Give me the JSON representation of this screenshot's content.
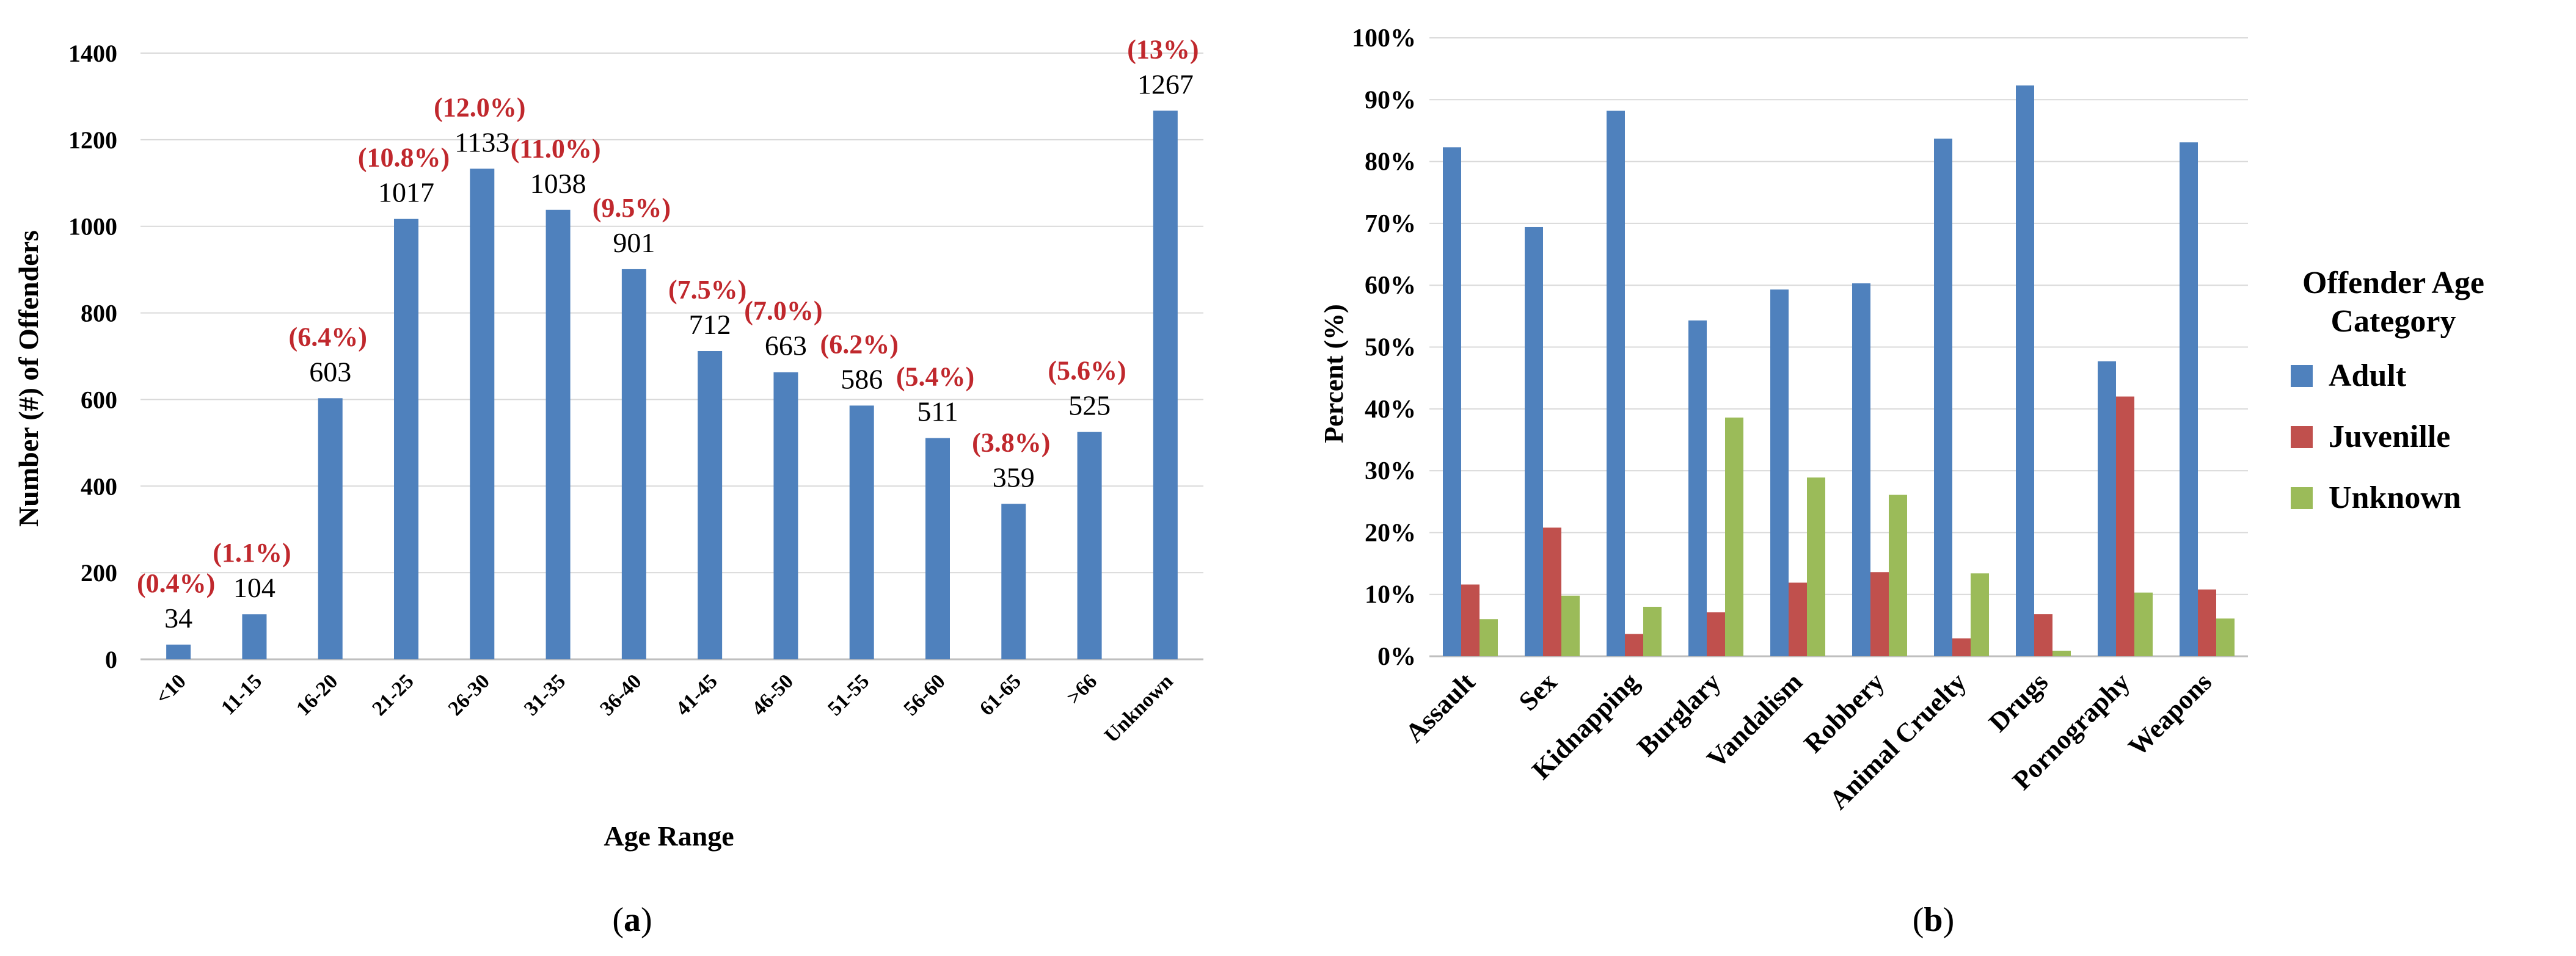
{
  "colors": {
    "adult": "#4F81BD",
    "juvenile": "#C0504D",
    "unknown": "#9BBB59",
    "percent_label": "#C0282D",
    "grid": "#D9D9D9",
    "axis": "#BFBFBF",
    "text": "#000000"
  },
  "chart_data": [
    {
      "type": "bar",
      "panel_label": "(a)",
      "panel_letter": "a",
      "xlabel": "Age Range",
      "ylabel": "Number (#) of Offenders",
      "ylim": [
        0,
        1400
      ],
      "yticks": [
        "0",
        "200",
        "400",
        "600",
        "800",
        "1000",
        "1200",
        "1400"
      ],
      "ytick_values": [
        0,
        200,
        400,
        600,
        800,
        1000,
        1200,
        1400
      ],
      "categories": [
        "<10",
        "11-15",
        "16-20",
        "21-25",
        "26-30",
        "31-35",
        "36-40",
        "41-45",
        "46-50",
        "51-55",
        "56-60",
        "61-65",
        ">66",
        "Unknown"
      ],
      "values": [
        34,
        104,
        603,
        1017,
        1133,
        1038,
        901,
        712,
        663,
        586,
        511,
        359,
        525,
        1267
      ],
      "value_labels": [
        "34",
        "104",
        "603",
        "1017",
        "1133",
        "1038",
        "901",
        "712",
        "663",
        "586",
        "511",
        "359",
        "525",
        "1267"
      ],
      "percent_labels": [
        "(0.4%)",
        "(1.1%)",
        "(6.4%)",
        "(10.8%)",
        "(12.0%)",
        "(11.0%)",
        "(9.5%)",
        "(7.5%)",
        "(7.0%)",
        "(6.2%)",
        "(5.4%)",
        "(3.8%)",
        "(5.6%)",
        "(13%)"
      ],
      "grid": true
    },
    {
      "type": "bar",
      "panel_label": "(b)",
      "panel_letter": "b",
      "xlabel": "",
      "ylabel": "Percent (%)",
      "ylim": [
        0,
        100
      ],
      "yticks": [
        "0%",
        "10%",
        "20%",
        "30%",
        "40%",
        "50%",
        "60%",
        "70%",
        "80%",
        "90%",
        "100%"
      ],
      "ytick_values": [
        0,
        10,
        20,
        30,
        40,
        50,
        60,
        70,
        80,
        90,
        100
      ],
      "categories": [
        "Assault",
        "Sex",
        "Kidnapping",
        "Burglary",
        "Vandalism",
        "Robbery",
        "Animal Cruelty",
        "Drugs",
        "Pornography",
        "Weapons"
      ],
      "legend_title": [
        "Offender Age",
        "Category"
      ],
      "legend_position": "right",
      "series": [
        {
          "name": "Adult",
          "values": [
            82.3,
            69.4,
            88.2,
            54.3,
            59.3,
            60.3,
            83.7,
            92.3,
            47.7,
            83.1
          ]
        },
        {
          "name": "Juvenille",
          "values": [
            11.6,
            20.8,
            3.6,
            7.1,
            11.9,
            13.6,
            2.9,
            6.8,
            42.0,
            10.8
          ]
        },
        {
          "name": "Unknown",
          "values": [
            6.0,
            9.8,
            8.0,
            38.6,
            28.9,
            26.1,
            13.4,
            0.9,
            10.3,
            6.1
          ]
        }
      ],
      "grid": true
    }
  ]
}
